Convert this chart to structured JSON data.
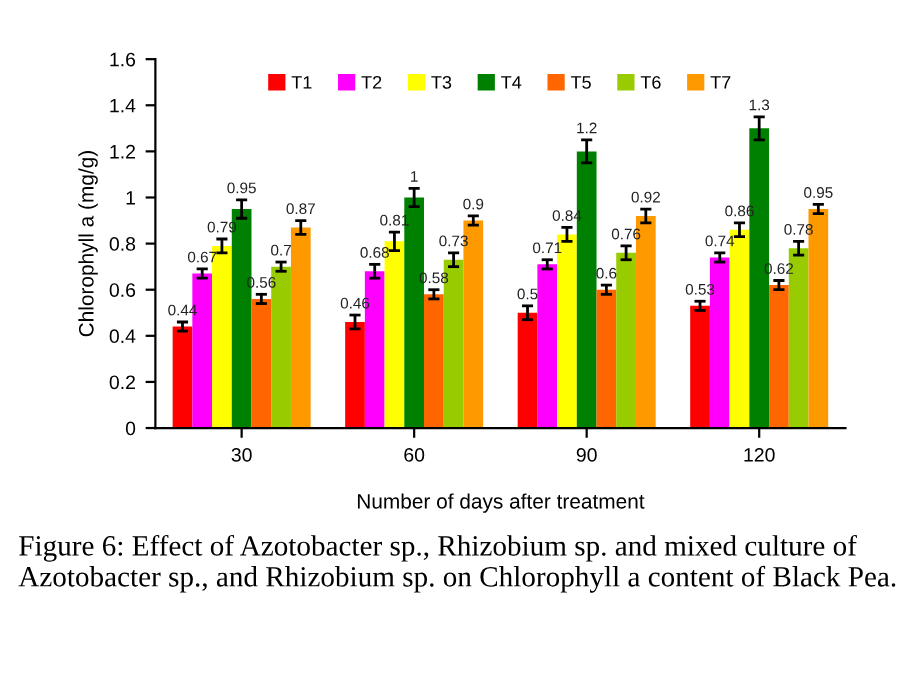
{
  "chart_data": {
    "type": "bar",
    "xlabel": "Number of days after treatment",
    "ylabel": "Chlorophyll a (mg/g)",
    "categories": [
      "30",
      "60",
      "90",
      "120"
    ],
    "series": [
      {
        "name": "T1",
        "color": "#ff0000",
        "values": [
          0.44,
          0.46,
          0.5,
          0.53
        ],
        "errors": [
          0.02,
          0.03,
          0.03,
          0.02
        ]
      },
      {
        "name": "T2",
        "color": "#ff00ff",
        "values": [
          0.67,
          0.68,
          0.71,
          0.74
        ],
        "errors": [
          0.02,
          0.03,
          0.02,
          0.02
        ]
      },
      {
        "name": "T3",
        "color": "#ffff00",
        "values": [
          0.79,
          0.81,
          0.84,
          0.86
        ],
        "errors": [
          0.03,
          0.04,
          0.03,
          0.03
        ]
      },
      {
        "name": "T4",
        "color": "#008000",
        "values": [
          0.95,
          1,
          1.2,
          1.3
        ],
        "errors": [
          0.04,
          0.04,
          0.05,
          0.05
        ]
      },
      {
        "name": "T5",
        "color": "#ff6600",
        "values": [
          0.56,
          0.58,
          0.6,
          0.62
        ],
        "errors": [
          0.02,
          0.02,
          0.02,
          0.02
        ]
      },
      {
        "name": "T6",
        "color": "#99cc00",
        "values": [
          0.7,
          0.73,
          0.76,
          0.78
        ],
        "errors": [
          0.02,
          0.03,
          0.03,
          0.03
        ]
      },
      {
        "name": "T7",
        "color": "#ff9900",
        "values": [
          0.87,
          0.9,
          0.92,
          0.95
        ],
        "errors": [
          0.03,
          0.02,
          0.03,
          0.02
        ]
      }
    ],
    "ylim": [
      0,
      1.6
    ],
    "yticks": [
      0,
      0.2,
      0.4,
      0.6,
      0.8,
      1,
      1.2,
      1.4,
      1.6
    ],
    "data_labels": true,
    "legend": "top",
    "grid": false,
    "annotations": [
      "Figure 6: Effect of Azotobacter sp., Rhizobium sp. and mixed culture of Azotobacter sp., and Rhizobium sp. on Chlorophyll a content of Black Pea."
    ]
  }
}
